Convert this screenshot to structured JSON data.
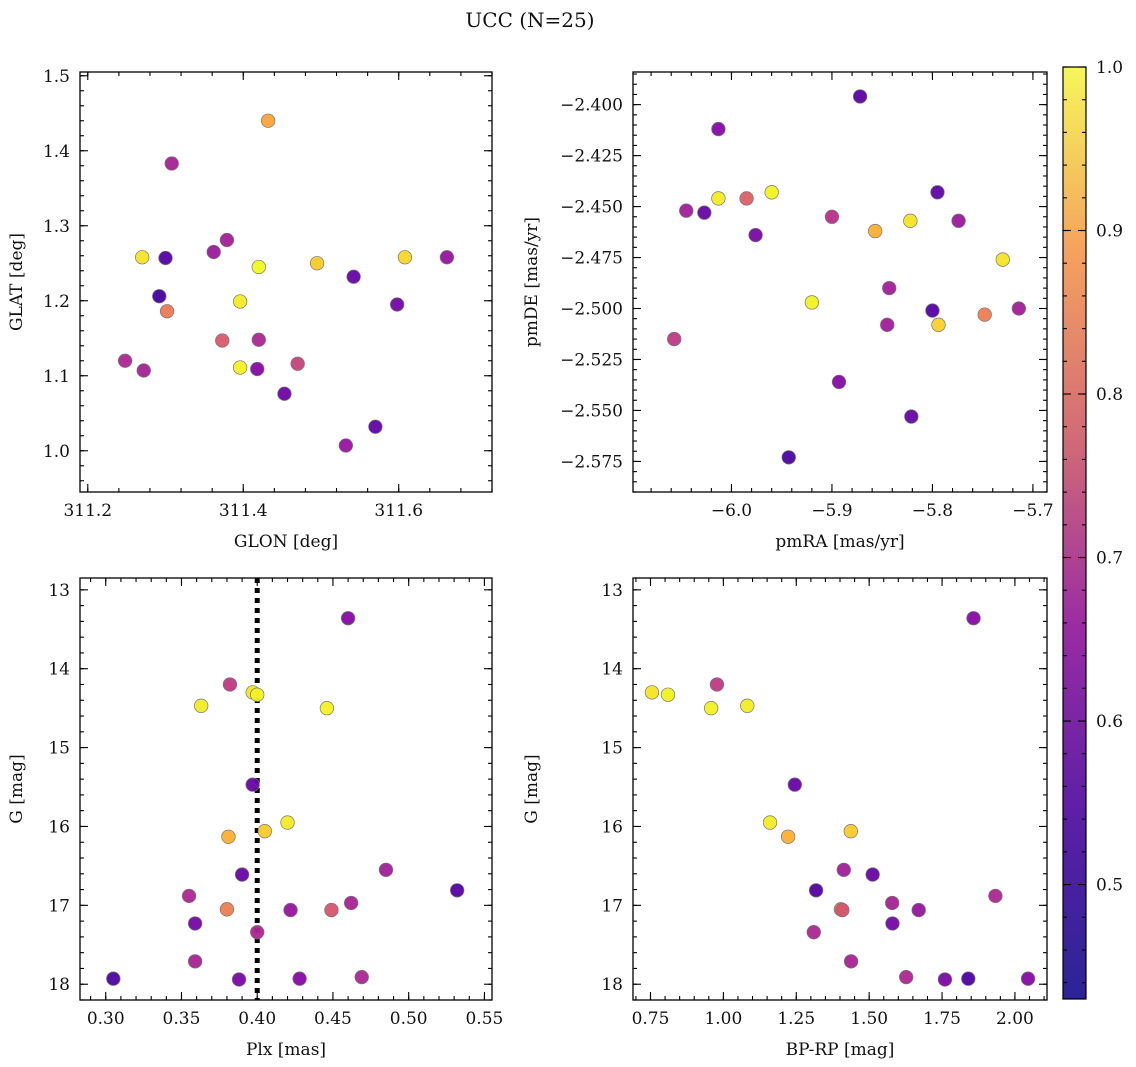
{
  "title": "UCC (N=25)",
  "colormap": {
    "name": "plasma",
    "range": [
      0.43,
      1.0
    ],
    "ticks": [
      0.5,
      0.6,
      0.7,
      0.8,
      0.9,
      1.0
    ],
    "tick_labels": [
      "0.5",
      "0.6",
      "0.7",
      "0.8",
      "0.9",
      "1.0"
    ]
  },
  "chart_data": [
    {
      "type": "scatter",
      "title": "",
      "xlabel": "GLON [deg]",
      "ylabel": "GLAT [deg]",
      "xlim": [
        311.19,
        311.72
      ],
      "ylim": [
        0.945,
        1.505
      ],
      "xticks": [
        311.2,
        311.4,
        311.6
      ],
      "xtick_labels": [
        "311.2",
        "311.4",
        "311.6"
      ],
      "yticks": [
        1.0,
        1.1,
        1.2,
        1.3,
        1.4,
        1.5
      ],
      "ytick_labels": [
        "1.0",
        "1.1",
        "1.2",
        "1.3",
        "1.4",
        "1.5"
      ],
      "points": [
        {
          "x": 311.432,
          "y": 1.44,
          "c": 0.87
        },
        {
          "x": 311.308,
          "y": 1.383,
          "c": 0.61
        },
        {
          "x": 311.379,
          "y": 1.281,
          "c": 0.6
        },
        {
          "x": 311.362,
          "y": 1.265,
          "c": 0.59
        },
        {
          "x": 311.27,
          "y": 1.258,
          "c": 0.97
        },
        {
          "x": 311.3,
          "y": 1.257,
          "c": 0.47
        },
        {
          "x": 311.608,
          "y": 1.258,
          "c": 0.95
        },
        {
          "x": 311.662,
          "y": 1.258,
          "c": 0.58
        },
        {
          "x": 311.495,
          "y": 1.25,
          "c": 0.93
        },
        {
          "x": 311.42,
          "y": 1.245,
          "c": 1.0
        },
        {
          "x": 311.542,
          "y": 1.232,
          "c": 0.5
        },
        {
          "x": 311.292,
          "y": 1.206,
          "c": 0.45
        },
        {
          "x": 311.396,
          "y": 1.199,
          "c": 0.98
        },
        {
          "x": 311.598,
          "y": 1.195,
          "c": 0.52
        },
        {
          "x": 311.302,
          "y": 1.186,
          "c": 0.79
        },
        {
          "x": 311.373,
          "y": 1.147,
          "c": 0.73
        },
        {
          "x": 311.42,
          "y": 1.148,
          "c": 0.62
        },
        {
          "x": 311.248,
          "y": 1.12,
          "c": 0.62
        },
        {
          "x": 311.47,
          "y": 1.116,
          "c": 0.68
        },
        {
          "x": 311.396,
          "y": 1.111,
          "c": 0.99
        },
        {
          "x": 311.418,
          "y": 1.109,
          "c": 0.55
        },
        {
          "x": 311.272,
          "y": 1.107,
          "c": 0.61
        },
        {
          "x": 311.453,
          "y": 1.076,
          "c": 0.51
        },
        {
          "x": 311.57,
          "y": 1.032,
          "c": 0.49
        },
        {
          "x": 311.532,
          "y": 1.007,
          "c": 0.58
        }
      ]
    },
    {
      "type": "scatter",
      "title": "",
      "xlabel": "pmRA [mas/yr]",
      "ylabel": "pmDE [mas/yr]",
      "xlim": [
        -6.098,
        -5.686
      ],
      "ylim": [
        -2.59,
        -2.384
      ],
      "xticks": [
        -6.0,
        -5.9,
        -5.8,
        -5.7
      ],
      "xtick_labels": [
        "−6.0",
        "−5.9",
        "−5.8",
        "−5.7"
      ],
      "yticks": [
        -2.4,
        -2.425,
        -2.45,
        -2.475,
        -2.5,
        -2.525,
        -2.55,
        -2.575
      ],
      "ytick_labels": [
        "−2.400",
        "−2.425",
        "−2.450",
        "−2.475",
        "−2.500",
        "−2.525",
        "−2.550",
        "−2.575"
      ],
      "points": [
        {
          "x": -5.872,
          "y": -2.396,
          "c": 0.48
        },
        {
          "x": -6.013,
          "y": -2.412,
          "c": 0.55
        },
        {
          "x": -5.96,
          "y": -2.443,
          "c": 0.99
        },
        {
          "x": -5.795,
          "y": -2.443,
          "c": 0.49
        },
        {
          "x": -6.013,
          "y": -2.446,
          "c": 0.98
        },
        {
          "x": -5.985,
          "y": -2.446,
          "c": 0.74
        },
        {
          "x": -6.045,
          "y": -2.452,
          "c": 0.6
        },
        {
          "x": -6.027,
          "y": -2.453,
          "c": 0.5
        },
        {
          "x": -5.9,
          "y": -2.455,
          "c": 0.64
        },
        {
          "x": -5.822,
          "y": -2.457,
          "c": 0.97
        },
        {
          "x": -5.774,
          "y": -2.457,
          "c": 0.59
        },
        {
          "x": -5.857,
          "y": -2.462,
          "c": 0.89
        },
        {
          "x": -5.976,
          "y": -2.464,
          "c": 0.53
        },
        {
          "x": -5.73,
          "y": -2.476,
          "c": 0.97
        },
        {
          "x": -5.843,
          "y": -2.49,
          "c": 0.6
        },
        {
          "x": -5.92,
          "y": -2.497,
          "c": 0.99
        },
        {
          "x": -5.8,
          "y": -2.501,
          "c": 0.47
        },
        {
          "x": -5.714,
          "y": -2.5,
          "c": 0.6
        },
        {
          "x": -5.748,
          "y": -2.503,
          "c": 0.8
        },
        {
          "x": -5.845,
          "y": -2.508,
          "c": 0.6
        },
        {
          "x": -5.794,
          "y": -2.508,
          "c": 0.94
        },
        {
          "x": -6.057,
          "y": -2.515,
          "c": 0.66
        },
        {
          "x": -5.893,
          "y": -2.536,
          "c": 0.55
        },
        {
          "x": -5.821,
          "y": -2.553,
          "c": 0.5
        },
        {
          "x": -5.943,
          "y": -2.573,
          "c": 0.46
        }
      ]
    },
    {
      "type": "scatter",
      "title": "",
      "xlabel": "Plx [mas]",
      "ylabel": "G [mag]",
      "xlim": [
        0.283,
        0.555
      ],
      "ylim": [
        18.2,
        12.85
      ],
      "y_inverted": true,
      "xticks": [
        0.3,
        0.35,
        0.4,
        0.45,
        0.5,
        0.55
      ],
      "xtick_labels": [
        "0.30",
        "0.35",
        "0.40",
        "0.45",
        "0.50",
        "0.55"
      ],
      "yticks": [
        13,
        14,
        15,
        16,
        17,
        18
      ],
      "ytick_labels": [
        "13",
        "14",
        "15",
        "16",
        "17",
        "18"
      ],
      "vline": {
        "x": 0.4,
        "style": "dotted"
      },
      "points": [
        {
          "x": 0.46,
          "y": 13.36,
          "c": 0.55
        },
        {
          "x": 0.382,
          "y": 14.2,
          "c": 0.66
        },
        {
          "x": 0.397,
          "y": 14.3,
          "c": 0.97
        },
        {
          "x": 0.4,
          "y": 14.33,
          "c": 0.99
        },
        {
          "x": 0.363,
          "y": 14.47,
          "c": 0.98
        },
        {
          "x": 0.446,
          "y": 14.5,
          "c": 0.99
        },
        {
          "x": 0.397,
          "y": 15.47,
          "c": 0.5
        },
        {
          "x": 0.42,
          "y": 15.95,
          "c": 0.98
        },
        {
          "x": 0.405,
          "y": 16.06,
          "c": 0.93
        },
        {
          "x": 0.381,
          "y": 16.13,
          "c": 0.89
        },
        {
          "x": 0.485,
          "y": 16.55,
          "c": 0.6
        },
        {
          "x": 0.39,
          "y": 16.61,
          "c": 0.5
        },
        {
          "x": 0.532,
          "y": 16.81,
          "c": 0.47
        },
        {
          "x": 0.355,
          "y": 16.88,
          "c": 0.62
        },
        {
          "x": 0.462,
          "y": 16.97,
          "c": 0.61
        },
        {
          "x": 0.38,
          "y": 17.05,
          "c": 0.8
        },
        {
          "x": 0.422,
          "y": 17.06,
          "c": 0.58
        },
        {
          "x": 0.449,
          "y": 17.06,
          "c": 0.72
        },
        {
          "x": 0.359,
          "y": 17.23,
          "c": 0.52
        },
        {
          "x": 0.4,
          "y": 17.34,
          "c": 0.62
        },
        {
          "x": 0.359,
          "y": 17.71,
          "c": 0.61
        },
        {
          "x": 0.469,
          "y": 17.91,
          "c": 0.62
        },
        {
          "x": 0.305,
          "y": 17.93,
          "c": 0.46
        },
        {
          "x": 0.428,
          "y": 17.93,
          "c": 0.55
        },
        {
          "x": 0.388,
          "y": 17.94,
          "c": 0.53
        }
      ]
    },
    {
      "type": "scatter",
      "title": "",
      "xlabel": "BP-RP [mag]",
      "ylabel": "G [mag]",
      "xlim": [
        0.69,
        2.11
      ],
      "ylim": [
        18.2,
        12.85
      ],
      "y_inverted": true,
      "xticks": [
        0.75,
        1.0,
        1.25,
        1.5,
        1.75,
        2.0
      ],
      "xtick_labels": [
        "0.75",
        "1.00",
        "1.25",
        "1.50",
        "1.75",
        "2.00"
      ],
      "yticks": [
        13,
        14,
        15,
        16,
        17,
        18
      ],
      "ytick_labels": [
        "13",
        "14",
        "15",
        "16",
        "17",
        "18"
      ],
      "points": [
        {
          "x": 1.858,
          "y": 13.36,
          "c": 0.55
        },
        {
          "x": 0.978,
          "y": 14.2,
          "c": 0.66
        },
        {
          "x": 0.755,
          "y": 14.3,
          "c": 0.97
        },
        {
          "x": 0.81,
          "y": 14.33,
          "c": 0.99
        },
        {
          "x": 1.082,
          "y": 14.47,
          "c": 0.98
        },
        {
          "x": 0.958,
          "y": 14.5,
          "c": 0.99
        },
        {
          "x": 1.245,
          "y": 15.47,
          "c": 0.5
        },
        {
          "x": 1.16,
          "y": 15.95,
          "c": 0.98
        },
        {
          "x": 1.437,
          "y": 16.06,
          "c": 0.93
        },
        {
          "x": 1.222,
          "y": 16.13,
          "c": 0.89
        },
        {
          "x": 1.413,
          "y": 16.55,
          "c": 0.6
        },
        {
          "x": 1.512,
          "y": 16.61,
          "c": 0.5
        },
        {
          "x": 1.318,
          "y": 16.81,
          "c": 0.47
        },
        {
          "x": 1.933,
          "y": 16.88,
          "c": 0.62
        },
        {
          "x": 1.579,
          "y": 16.97,
          "c": 0.61
        },
        {
          "x": 1.403,
          "y": 17.05,
          "c": 0.8
        },
        {
          "x": 1.67,
          "y": 17.06,
          "c": 0.58
        },
        {
          "x": 1.408,
          "y": 17.06,
          "c": 0.72
        },
        {
          "x": 1.58,
          "y": 17.23,
          "c": 0.52
        },
        {
          "x": 1.31,
          "y": 17.34,
          "c": 0.62
        },
        {
          "x": 1.438,
          "y": 17.71,
          "c": 0.61
        },
        {
          "x": 1.627,
          "y": 17.91,
          "c": 0.62
        },
        {
          "x": 1.84,
          "y": 17.93,
          "c": 0.46
        },
        {
          "x": 2.045,
          "y": 17.93,
          "c": 0.55
        },
        {
          "x": 1.76,
          "y": 17.94,
          "c": 0.53
        }
      ]
    }
  ]
}
